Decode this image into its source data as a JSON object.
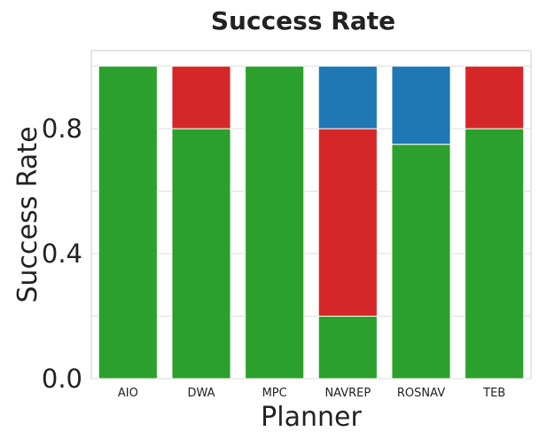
{
  "chart_data": {
    "type": "bar",
    "stacked": true,
    "title": "Success Rate",
    "xlabel": "Planner",
    "ylabel": "Success Rate",
    "categories": [
      "AIO",
      "DWA",
      "MPC",
      "NAVREP",
      "ROSNAV",
      "TEB"
    ],
    "series": [
      {
        "color": "#2ca02c",
        "values": [
          1.0,
          0.8,
          1.0,
          0.2,
          0.75,
          0.8
        ]
      },
      {
        "color": "#d62728",
        "values": [
          0.0,
          0.2,
          0.0,
          0.6,
          0.0,
          0.2
        ]
      },
      {
        "color": "#1f77b4",
        "values": [
          0.0,
          0.0,
          0.0,
          0.2,
          0.25,
          0.0
        ]
      }
    ],
    "ylim": [
      0,
      1.05
    ],
    "yticks": [
      0.0,
      0.4,
      0.8
    ],
    "ytick_labels": [
      "0.0",
      "0.4",
      "0.8"
    ],
    "minor_gridlines": [
      0.2,
      0.6,
      1.0
    ],
    "grid": true,
    "legend": "none"
  }
}
